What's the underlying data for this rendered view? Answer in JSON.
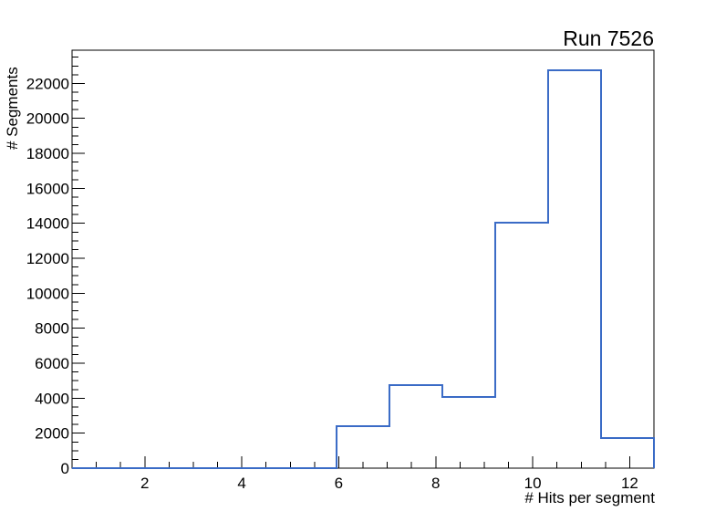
{
  "title": "Run 7526",
  "chart_data": {
    "type": "histogram",
    "title": "Run 7526",
    "xlabel": "# Hits per segment",
    "ylabel": "# Segments",
    "xlim": [
      0.5,
      12.5
    ],
    "ylim": [
      0,
      23900
    ],
    "x_major_ticks": [
      2,
      4,
      6,
      8,
      10,
      12
    ],
    "x_minor_step": 0.5,
    "y_major_ticks": [
      0,
      2000,
      4000,
      6000,
      8000,
      10000,
      12000,
      14000,
      16000,
      18000,
      20000,
      22000
    ],
    "y_minor_step": 500,
    "bin_edges": [
      0.5,
      1.591,
      2.682,
      3.773,
      4.864,
      5.955,
      7.045,
      8.136,
      9.227,
      10.318,
      11.409,
      12.5
    ],
    "bin_counts": [
      0,
      0,
      0,
      0,
      0,
      2400,
      4750,
      4070,
      14040,
      22750,
      1720
    ],
    "line_color": "#3a6bc6",
    "frame_color": "#000000",
    "background": "#ffffff",
    "grid": false
  }
}
